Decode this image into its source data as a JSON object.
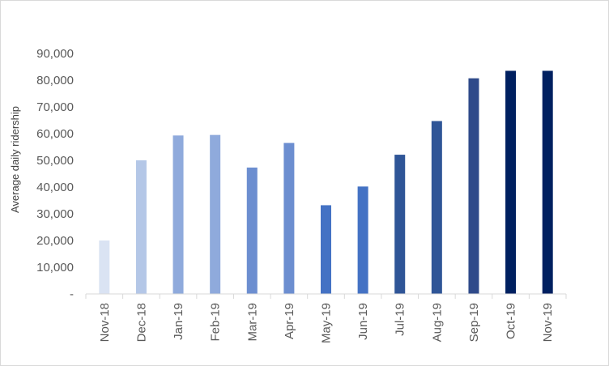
{
  "chart_data": {
    "type": "bar",
    "title": "",
    "xlabel": "",
    "ylabel": "Average daily ridership",
    "ylim": [
      0,
      90000
    ],
    "y_ticks": [
      0,
      10000,
      20000,
      30000,
      40000,
      50000,
      60000,
      70000,
      80000,
      90000
    ],
    "y_tick_labels": [
      "-",
      "10,000",
      "20,000",
      "30,000",
      "40,000",
      "50,000",
      "60,000",
      "70,000",
      "80,000",
      "90,000"
    ],
    "grid": false,
    "legend": "none",
    "categories": [
      "Nov-18",
      "Dec-18",
      "Jan-19",
      "Feb-19",
      "Mar-19",
      "Apr-19",
      "May-19",
      "Jun-19",
      "Jul-19",
      "Aug-19",
      "Sep-19",
      "Oct-19",
      "Nov-19"
    ],
    "values": [
      20000,
      50000,
      59300,
      59500,
      47300,
      56500,
      33200,
      40200,
      52100,
      64700,
      80700,
      83500,
      83500
    ],
    "bar_colors": [
      "#dae3f3",
      "#b4c7e7",
      "#8faadc",
      "#8faadc",
      "#6c8ed0",
      "#6c8ed0",
      "#4472c4",
      "#4472c4",
      "#2f5597",
      "#2f5597",
      "#2f4a8a",
      "#002060",
      "#002060"
    ]
  }
}
